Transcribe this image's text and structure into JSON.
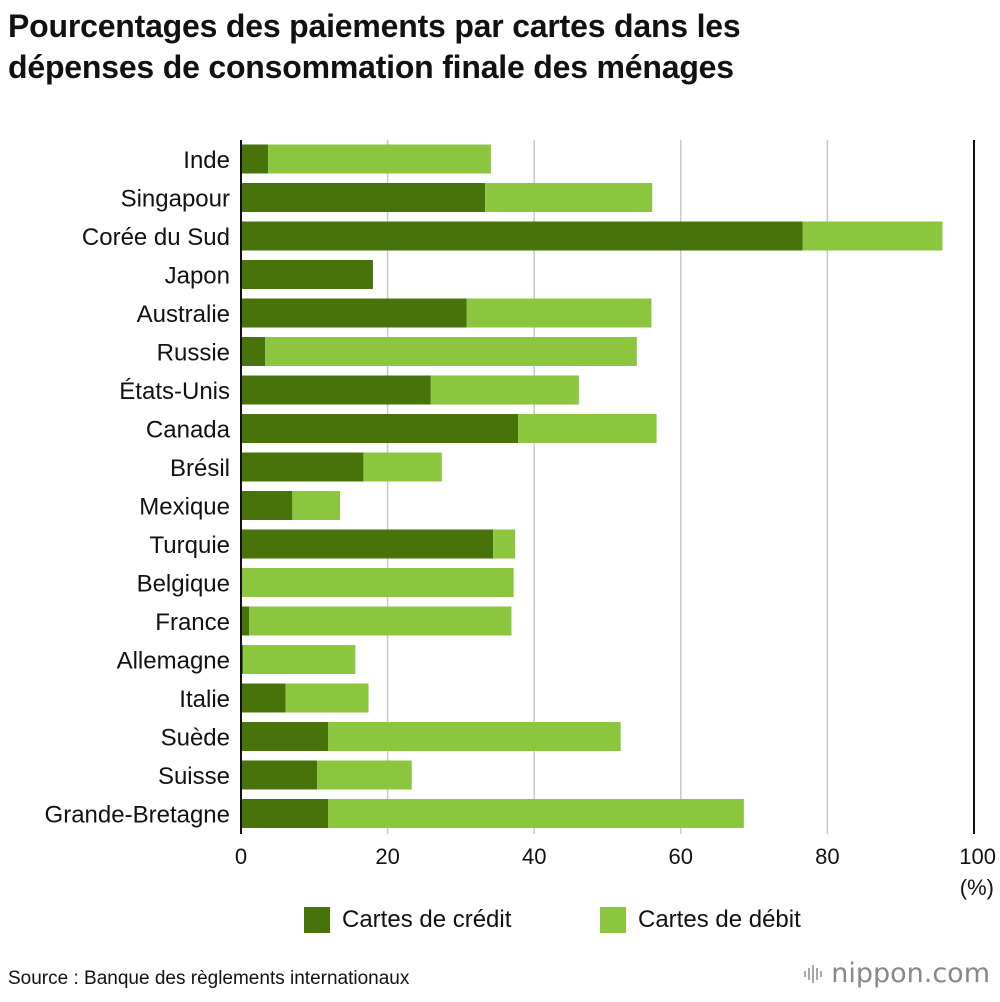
{
  "title": {
    "line1": "Pourcentages des paiements par cartes dans les",
    "line2": "dépenses de consommation finale des ménages"
  },
  "colors": {
    "credit": "#48730a",
    "debit": "#8cc63f",
    "grid": "#c8c8c8",
    "text": "#111111"
  },
  "chart_data": {
    "type": "bar",
    "orientation": "horizontal",
    "stacked": true,
    "categories": [
      "Inde",
      "Singapour",
      "Corée du Sud",
      "Japon",
      "Australie",
      "Russie",
      "États-Unis",
      "Canada",
      "Brésil",
      "Mexique",
      "Turquie",
      "Belgique",
      "France",
      "Allemagne",
      "Italie",
      "Suède",
      "Suisse",
      "Grande-Bretagne"
    ],
    "series": [
      {
        "name": "Cartes de crédit",
        "values": [
          3.7,
          33.3,
          76.6,
          18.0,
          30.8,
          3.3,
          25.9,
          37.8,
          16.7,
          7.0,
          34.4,
          0.0,
          1.1,
          0.3,
          6.1,
          11.9,
          10.4,
          11.9
        ]
      },
      {
        "name": "Cartes de débit",
        "values": [
          30.4,
          22.8,
          19.1,
          0.0,
          25.2,
          50.7,
          20.2,
          18.9,
          10.7,
          6.5,
          3.0,
          37.2,
          35.8,
          15.3,
          11.3,
          39.9,
          12.9,
          56.7
        ]
      }
    ],
    "xlim": [
      0,
      100
    ],
    "xticks": [
      "0",
      "20",
      "40",
      "60",
      "80",
      "100"
    ],
    "unit_label": "(%)",
    "xlabel": "",
    "ylabel": "",
    "grid": true,
    "legend_position": "bottom"
  },
  "legend": {
    "credit_label": "Cartes de crédit",
    "debit_label": "Cartes de débit"
  },
  "footer": {
    "source": "Source : Banque des règlements internationaux",
    "brand_name": "nippon",
    "brand_dot": ".",
    "brand_tld": "com"
  }
}
